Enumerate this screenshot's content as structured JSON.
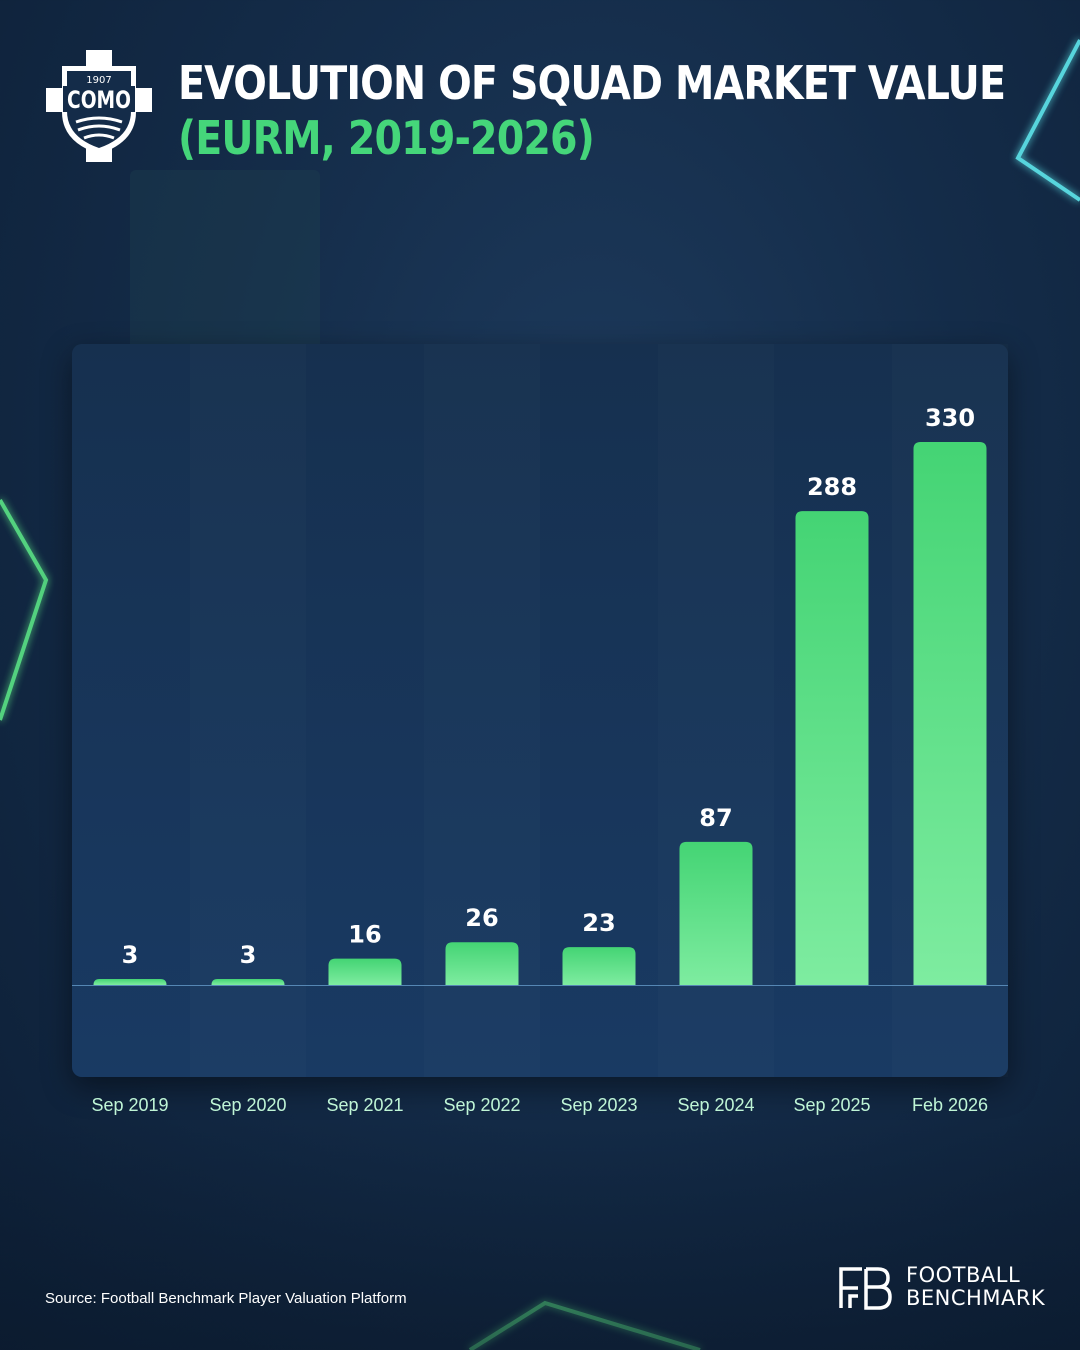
{
  "header": {
    "title": "EVOLUTION OF SQUAD MARKET VALUE",
    "subtitle": "(EURM, 2019-2026)"
  },
  "club_logo": {
    "year": "1907",
    "name": "COMO",
    "icon": "como-crest-icon"
  },
  "colors": {
    "background": "#142c49",
    "accent": "#45d67a",
    "bar_top": "#44d474",
    "bar_bottom": "#7eeca0",
    "axis_label": "#bff5d6",
    "glow_cyan": "#5fe8ee",
    "glow_green": "#5ff08a"
  },
  "chart_data": {
    "type": "bar",
    "categories": [
      "Sep 2019",
      "Sep 2020",
      "Sep 2021",
      "Sep 2022",
      "Sep 2023",
      "Sep 2024",
      "Sep 2025",
      "Feb 2026"
    ],
    "values": [
      3,
      3,
      16,
      26,
      23,
      87,
      288,
      330
    ],
    "ylim": [
      0,
      330
    ],
    "grid": false,
    "data_labels": true
  },
  "footer": {
    "source": "Source: Football Benchmark Player Valuation Platform",
    "brand_line1": "FOOTBALL",
    "brand_line2": "BENCHMARK",
    "brand_icon": "fb-monogram-icon"
  }
}
